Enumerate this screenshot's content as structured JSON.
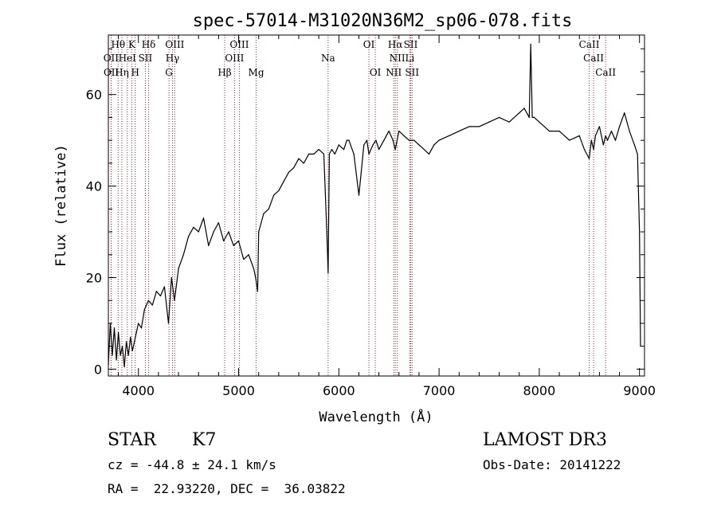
{
  "chart_data": {
    "type": "line",
    "title": "spec-57014-M31020N36M2_sp06-078.fits",
    "xlabel": "Wavelength (Å)",
    "ylabel": "Flux (relative)",
    "xlim": [
      3700,
      9050
    ],
    "ylim": [
      -1.5,
      73
    ],
    "xticks": [
      4000,
      5000,
      6000,
      7000,
      8000,
      9000
    ],
    "yticks": [
      0,
      20,
      40,
      60
    ],
    "grid": false,
    "series": [
      {
        "name": "",
        "x": [
          3700,
          3720,
          3740,
          3760,
          3780,
          3800,
          3820,
          3840,
          3860,
          3880,
          3900,
          3920,
          3940,
          3960,
          3980,
          4000,
          4030,
          4060,
          4100,
          4140,
          4180,
          4220,
          4260,
          4300,
          4330,
          4360,
          4400,
          4450,
          4500,
          4550,
          4600,
          4650,
          4700,
          4750,
          4800,
          4850,
          4900,
          4950,
          5000,
          5050,
          5100,
          5150,
          5170,
          5190,
          5200,
          5250,
          5300,
          5350,
          5400,
          5450,
          5500,
          5550,
          5600,
          5650,
          5700,
          5750,
          5800,
          5850,
          5880,
          5893,
          5905,
          5930,
          5960,
          6000,
          6050,
          6080,
          6100,
          6150,
          6200,
          6250,
          6280,
          6300,
          6340,
          6370,
          6400,
          6450,
          6500,
          6540,
          6563,
          6600,
          6650,
          6700,
          6750,
          6800,
          6850,
          6900,
          6950,
          7000,
          7100,
          7200,
          7300,
          7400,
          7500,
          7600,
          7700,
          7800,
          7850,
          7900,
          7915,
          7930,
          7950,
          8000,
          8100,
          8200,
          8300,
          8400,
          8450,
          8498,
          8520,
          8542,
          8560,
          8600,
          8640,
          8662,
          8680,
          8720,
          8760,
          8800,
          8850,
          8900,
          8950,
          8980,
          9000,
          9010
        ],
        "y": [
          1,
          10,
          3,
          9,
          2,
          8,
          3,
          5,
          0.5,
          6,
          3,
          7,
          4,
          6,
          8,
          10,
          9,
          13,
          15,
          14,
          17,
          16,
          18,
          10,
          20,
          15,
          22,
          25,
          29,
          31,
          30,
          33,
          27,
          30,
          32,
          28,
          30,
          27,
          28,
          24,
          25,
          22,
          20,
          17,
          30,
          34,
          35,
          38,
          39,
          41,
          43,
          44,
          46,
          45,
          47,
          47,
          48,
          47,
          30,
          21,
          47,
          48,
          47,
          49,
          48,
          50,
          50,
          47,
          38,
          49,
          50,
          47,
          49,
          50,
          48,
          50,
          52,
          50,
          48,
          52,
          51,
          50,
          50,
          49,
          48,
          47,
          49,
          50,
          51,
          52,
          53,
          53,
          54,
          55,
          54,
          56,
          57,
          55,
          71,
          55,
          55,
          54,
          52,
          52,
          50,
          51,
          48,
          46,
          50,
          48,
          51,
          53,
          49,
          51,
          50,
          52,
          50,
          53,
          56,
          52,
          49,
          47,
          30,
          5
        ]
      }
    ],
    "annotations": {
      "row1": [
        {
          "text": "Hθ",
          "x": 3798
        },
        {
          "text": "K",
          "x": 3934
        },
        {
          "text": "Hδ",
          "x": 4102
        },
        {
          "text": "OIII",
          "x": 4363
        },
        {
          "text": "OIII",
          "x": 5007
        },
        {
          "text": "OI",
          "x": 6300
        },
        {
          "text": "Hα",
          "x": 6563
        },
        {
          "text": "SII",
          "x": 6717
        },
        {
          "text": "CaII",
          "x": 8498
        }
      ],
      "row2": [
        {
          "text": "OII",
          "x": 3727
        },
        {
          "text": "HeI",
          "x": 3889
        },
        {
          "text": "SII",
          "x": 4069
        },
        {
          "text": "Hγ",
          "x": 4340
        },
        {
          "text": "OIII",
          "x": 4959
        },
        {
          "text": "Na",
          "x": 5893
        },
        {
          "text": "NII",
          "x": 6583
        },
        {
          "text": "Li",
          "x": 6708
        },
        {
          "text": "CaII",
          "x": 8542
        }
      ],
      "row3": [
        {
          "text": "OII",
          "x": 3729
        },
        {
          "text": "Hη",
          "x": 3835
        },
        {
          "text": "H",
          "x": 3968
        },
        {
          "text": "G",
          "x": 4305
        },
        {
          "text": "Hβ",
          "x": 4861
        },
        {
          "text": "Mg",
          "x": 5175
        },
        {
          "text": "OI",
          "x": 6364
        },
        {
          "text": "NII",
          "x": 6548
        },
        {
          "text": "SII",
          "x": 6731
        },
        {
          "text": "CaII",
          "x": 8662
        }
      ],
      "line_positions": [
        3727,
        3729,
        3798,
        3835,
        3889,
        3934,
        3968,
        4069,
        4102,
        4305,
        4340,
        4363,
        4861,
        4959,
        5007,
        5175,
        5893,
        6300,
        6364,
        6548,
        6563,
        6583,
        6708,
        6717,
        6731,
        8498,
        8542,
        8662
      ]
    }
  },
  "footer": {
    "object_class": "STAR",
    "subclass": "K7",
    "cz": "cz = -44.8 ± 24.1 km/s",
    "coords": "RA =  22.93220, DEC =  36.03822",
    "survey": "LAMOST DR3",
    "obs_date": "Obs-Date: 20141222"
  },
  "colors": {
    "axis": "#000000",
    "spectrum": "#000000",
    "line_markers": "#b22222"
  }
}
